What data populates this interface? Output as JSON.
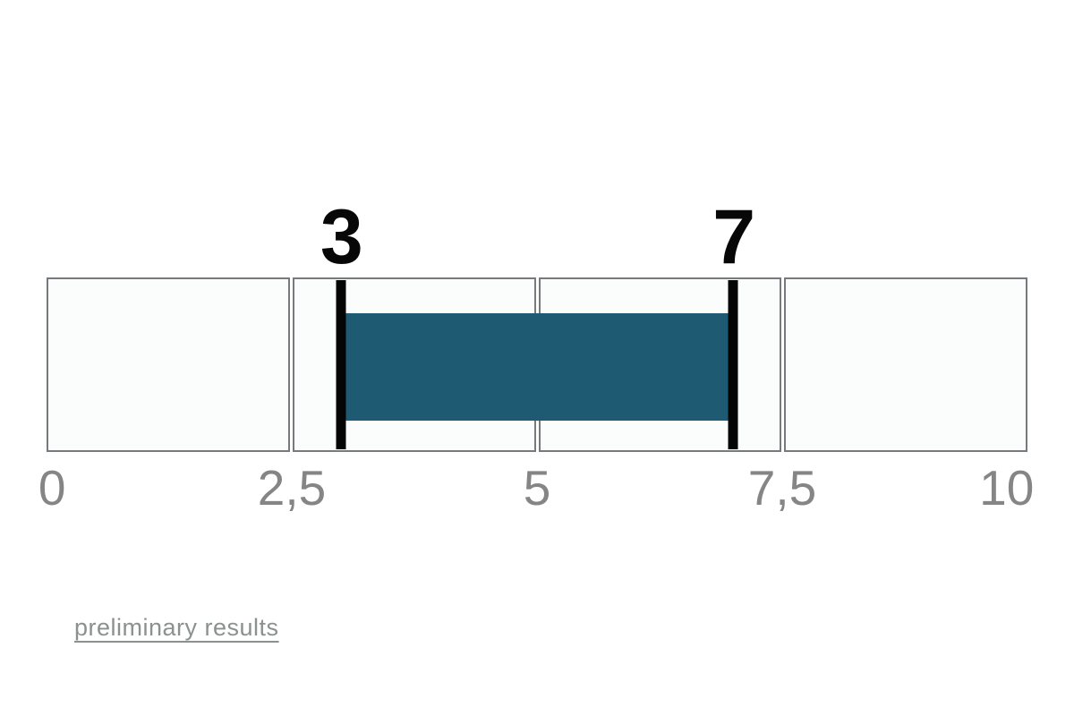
{
  "chart_data": {
    "type": "bar",
    "subtype": "horizontal-range-indicator",
    "title": "",
    "xlabel": "",
    "ylabel": "",
    "grid": false,
    "legend": "none",
    "axis": {
      "min": 0,
      "max": 10,
      "ticks": [
        {
          "value": 0,
          "label": "0"
        },
        {
          "value": 2.5,
          "label": "2,5"
        },
        {
          "value": 5,
          "label": "5"
        },
        {
          "value": 7.5,
          "label": "7,5"
        },
        {
          "value": 10,
          "label": "10"
        }
      ]
    },
    "segments": [
      {
        "from": 0,
        "to": 2.5
      },
      {
        "from": 2.5,
        "to": 5
      },
      {
        "from": 5,
        "to": 7.5
      },
      {
        "from": 7.5,
        "to": 10
      }
    ],
    "range": {
      "start": 3,
      "end": 7,
      "start_label": "3",
      "end_label": "7"
    },
    "colors": {
      "bar": "#1f5a73",
      "marker": "#050505",
      "value_label": "#070707",
      "segment_background": "#fafdfc",
      "segment_border": "#767a7c",
      "tick_label": "#858585",
      "link": "#8a918f"
    }
  },
  "footer": {
    "link_label": "preliminary results"
  }
}
